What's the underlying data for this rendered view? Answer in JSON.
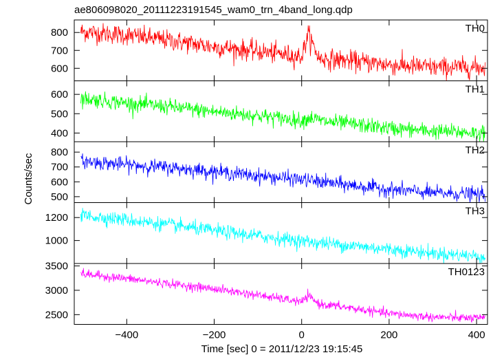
{
  "title": "ae806098020_20111223191545_wam0_trn_4band_long.qdp",
  "ylabel": "Counts/sec",
  "xlabel": "Time [sec] 0 = 2011/12/23 19:15:45",
  "chart_data": {
    "type": "line",
    "title": "ae806098020_20111223191545_wam0_trn_4band_long.qdp",
    "xlabel": "Time [sec] 0 = 2011/12/23 19:15:45",
    "ylabel": "Counts/sec",
    "xlim": [
      -520,
      425
    ],
    "xticks": [
      -400,
      -200,
      0,
      200,
      400
    ],
    "x_tick_labels": [
      "−400",
      "−200",
      "0",
      "200",
      "400"
    ],
    "x_start": -505,
    "x_end": 420,
    "x_step": 1,
    "legend": "none",
    "grid": false,
    "panels": [
      {
        "name": "TH0",
        "color": "#ff0000",
        "ylim": [
          530,
          870
        ],
        "yticks": [
          600,
          700,
          800
        ],
        "y_tick_labels": [
          "600",
          "700",
          "800"
        ],
        "trend_points": [
          [
            -505,
            805
          ],
          [
            -400,
            785
          ],
          [
            -300,
            755
          ],
          [
            -200,
            720
          ],
          [
            -100,
            695
          ],
          [
            0,
            665
          ],
          [
            15,
            790
          ],
          [
            40,
            655
          ],
          [
            100,
            645
          ],
          [
            200,
            620
          ],
          [
            300,
            605
          ],
          [
            420,
            605
          ]
        ],
        "noise_sd": 28
      },
      {
        "name": "TH1",
        "color": "#00ff00",
        "ylim": [
          355,
          670
        ],
        "yticks": [
          400,
          500,
          600
        ],
        "y_tick_labels": [
          "400",
          "500",
          "600"
        ],
        "trend_points": [
          [
            -505,
            580
          ],
          [
            -400,
            555
          ],
          [
            -300,
            535
          ],
          [
            -200,
            510
          ],
          [
            -100,
            490
          ],
          [
            0,
            465
          ],
          [
            20,
            480
          ],
          [
            50,
            460
          ],
          [
            100,
            450
          ],
          [
            200,
            425
          ],
          [
            300,
            410
          ],
          [
            420,
            400
          ]
        ],
        "noise_sd": 20
      },
      {
        "name": "TH2",
        "color": "#0000ff",
        "ylim": [
          460,
          870
        ],
        "yticks": [
          500,
          600,
          700,
          800
        ],
        "y_tick_labels": [
          "500",
          "600",
          "700",
          "800"
        ],
        "trend_points": [
          [
            -505,
            740
          ],
          [
            -400,
            715
          ],
          [
            -300,
            695
          ],
          [
            -200,
            670
          ],
          [
            -100,
            640
          ],
          [
            0,
            615
          ],
          [
            100,
            580
          ],
          [
            200,
            550
          ],
          [
            300,
            525
          ],
          [
            420,
            515
          ]
        ],
        "noise_sd": 24
      },
      {
        "name": "TH3",
        "color": "#00ffff",
        "ylim": [
          800,
          1330
        ],
        "yticks": [
          1000,
          1200
        ],
        "y_tick_labels": [
          "1000",
          "1200"
        ],
        "trend_points": [
          [
            -505,
            1220
          ],
          [
            -400,
            1180
          ],
          [
            -300,
            1135
          ],
          [
            -200,
            1085
          ],
          [
            -100,
            1040
          ],
          [
            0,
            995
          ],
          [
            100,
            960
          ],
          [
            200,
            925
          ],
          [
            300,
            890
          ],
          [
            420,
            860
          ]
        ],
        "noise_sd": 30
      },
      {
        "name": "TH0123",
        "color": "#ff00ff",
        "ylim": [
          2300,
          3550
        ],
        "yticks": [
          2500,
          3000,
          3500
        ],
        "y_tick_labels": [
          "2500",
          "3000",
          "3500"
        ],
        "trend_points": [
          [
            -505,
            3340
          ],
          [
            -400,
            3240
          ],
          [
            -300,
            3130
          ],
          [
            -200,
            3030
          ],
          [
            -100,
            2900
          ],
          [
            0,
            2760
          ],
          [
            15,
            2880
          ],
          [
            40,
            2720
          ],
          [
            100,
            2650
          ],
          [
            200,
            2520
          ],
          [
            300,
            2450
          ],
          [
            420,
            2420
          ]
        ],
        "noise_sd": 45
      }
    ]
  }
}
